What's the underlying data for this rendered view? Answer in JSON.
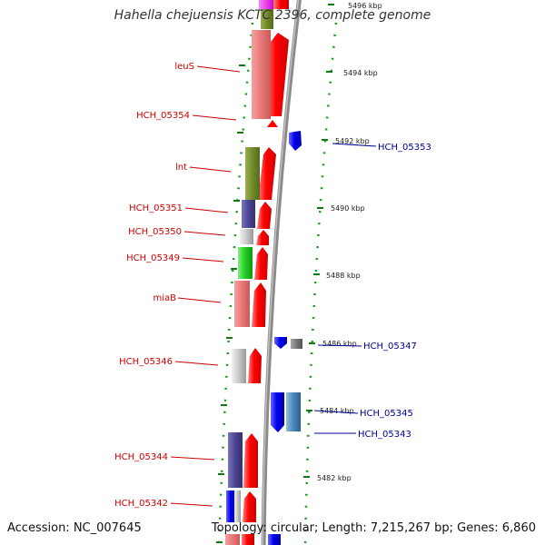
{
  "title": "Hahella chejuensis KCTC 2396, complete genome",
  "footer": {
    "accession": "Accession: NC_007645",
    "topology": "Topology: circular; Length: 7,215,267 bp; Genes: 6,860"
  },
  "scale_labels": [
    "5496 kbp",
    "5494 kbp",
    "5492 kbp",
    "5490 kbp",
    "5488 kbp",
    "5486 kbp",
    "5484 kbp",
    "5482 kbp"
  ],
  "left_gene_labels": [
    "leuS",
    "HCH_05354",
    "lnt",
    "HCH_05351",
    "HCH_05350",
    "HCH_05349",
    "miaB",
    "HCH_05346",
    "HCH_05344",
    "HCH_05342"
  ],
  "right_gene_labels": [
    "HCH_05353",
    "HCH_05347",
    "HCH_05345",
    "HCH_05343"
  ],
  "colors": {
    "left_label": "#cc0000",
    "right_label": "#000099",
    "backbone": "#888888",
    "forward_strand": "#ff0000",
    "reverse_strand": "#0000ee",
    "tick": "#007700"
  }
}
